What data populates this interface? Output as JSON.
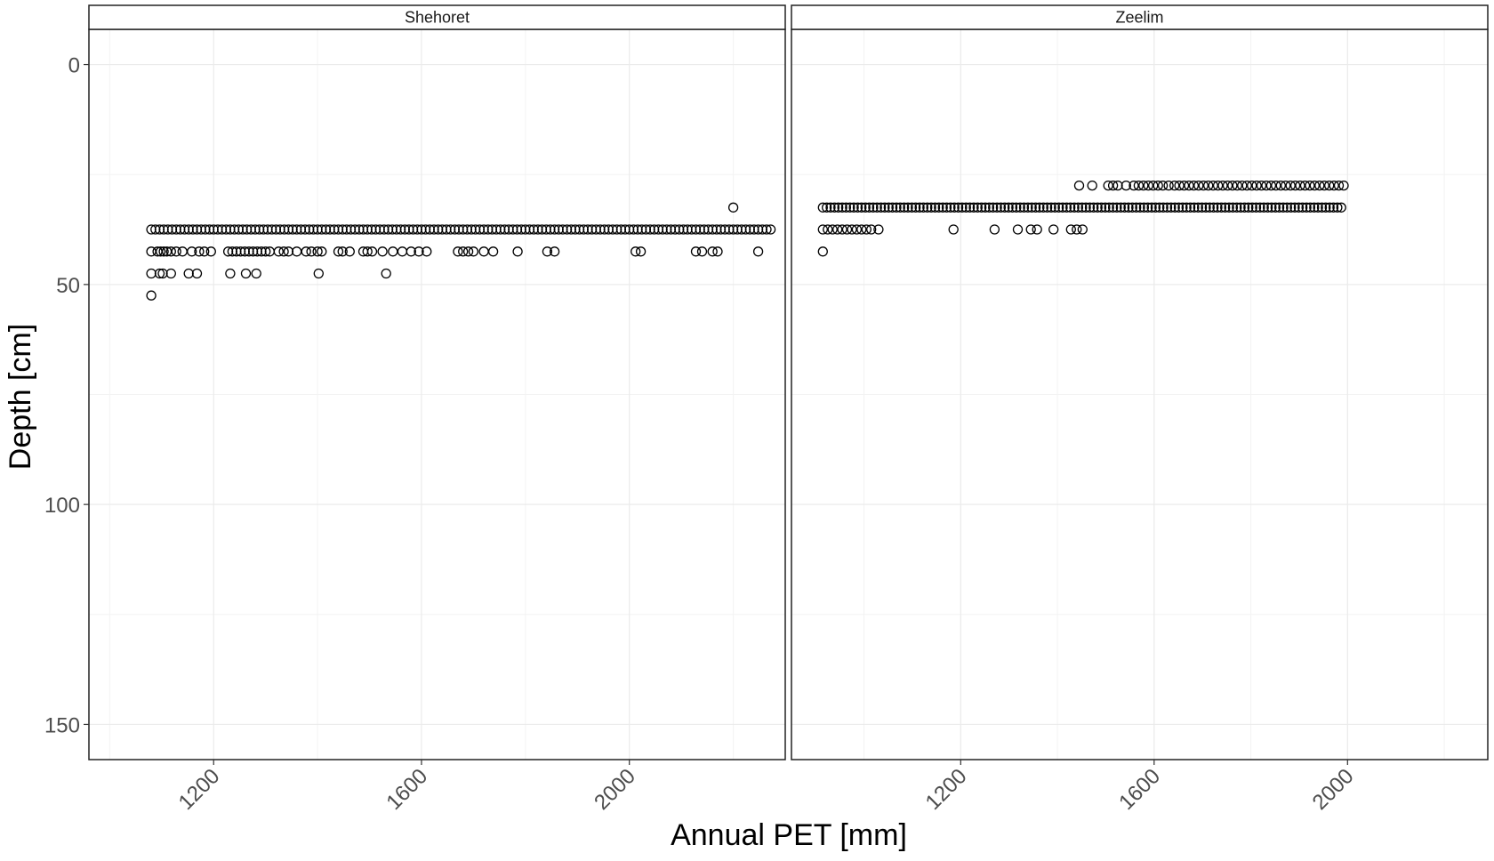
{
  "chart_data": {
    "type": "scatter",
    "xlabel": "Annual PET [mm]",
    "ylabel": "Depth [cm]",
    "y_reversed": true,
    "ylim": [
      158,
      -8
    ],
    "x_ticks": [
      1200,
      1600,
      2000
    ],
    "x_tick_labels": [
      "1200",
      "1600",
      "2000"
    ],
    "y_ticks": [
      0,
      50,
      100,
      150
    ],
    "y_tick_labels": [
      "0",
      "50",
      "100",
      "150"
    ],
    "grid": true,
    "marker": "open-circle",
    "panels": [
      {
        "strip": "Shehoret",
        "xlim": [
          960,
          2300
        ],
        "series": [
          {
            "y": 37.5,
            "x_range": [
              1080,
              2275
            ],
            "x_step": 8
          },
          {
            "y": 42.5,
            "x": [
              1080,
              1092,
              1098,
              1104,
              1110,
              1118,
              1128,
              1140,
              1158,
              1172,
              1182,
              1195,
              1228,
              1236,
              1244,
              1252,
              1260,
              1268,
              1276,
              1284,
              1292,
              1300,
              1308,
              1325,
              1335,
              1344,
              1360,
              1378,
              1388,
              1400,
              1408,
              1440,
              1448,
              1462,
              1488,
              1496,
              1505,
              1525,
              1545,
              1563,
              1580,
              1595,
              1610,
              1670,
              1680,
              1690,
              1700,
              1720,
              1738,
              1785,
              1842,
              1856,
              2012,
              2022,
              2128,
              2140,
              2160,
              2170,
              2248
            ]
          },
          {
            "y": 47.5,
            "x": [
              1080,
              1096,
              1102,
              1118,
              1152,
              1168,
              1232,
              1262,
              1282,
              1402,
              1532
            ]
          },
          {
            "y": 52.5,
            "x": [
              1080
            ]
          },
          {
            "y": 32.5,
            "x": [
              2200
            ]
          }
        ]
      },
      {
        "strip": "Zeelim",
        "xlim": [
          850,
          2290
        ],
        "series": [
          {
            "y": 27.5,
            "x": [
              1445,
              1472,
              1505,
              1515,
              1525,
              1542,
              1558,
              1568,
              1578,
              1588,
              1598,
              1608,
              1618,
              1630,
              1642,
              1652,
              1662,
              1672,
              1682,
              1692,
              1702,
              1712,
              1722,
              1732,
              1742,
              1752,
              1762,
              1772,
              1782,
              1792,
              1802,
              1812,
              1822,
              1832,
              1842,
              1852,
              1862,
              1872,
              1882,
              1892,
              1902,
              1912,
              1922,
              1932,
              1942,
              1952,
              1962,
              1972,
              1982,
              1992
            ]
          },
          {
            "y": 32.5,
            "x_range": [
              915,
              1992
            ],
            "x_step": 8
          },
          {
            "y": 37.5,
            "x": [
              915,
              925,
              935,
              945,
              955,
              965,
              975,
              985,
              995,
              1005,
              1015,
              1030,
              1185,
              1270,
              1318,
              1345,
              1358,
              1392,
              1428,
              1440,
              1452
            ]
          },
          {
            "y": 42.5,
            "x": [
              915
            ]
          }
        ]
      }
    ]
  }
}
